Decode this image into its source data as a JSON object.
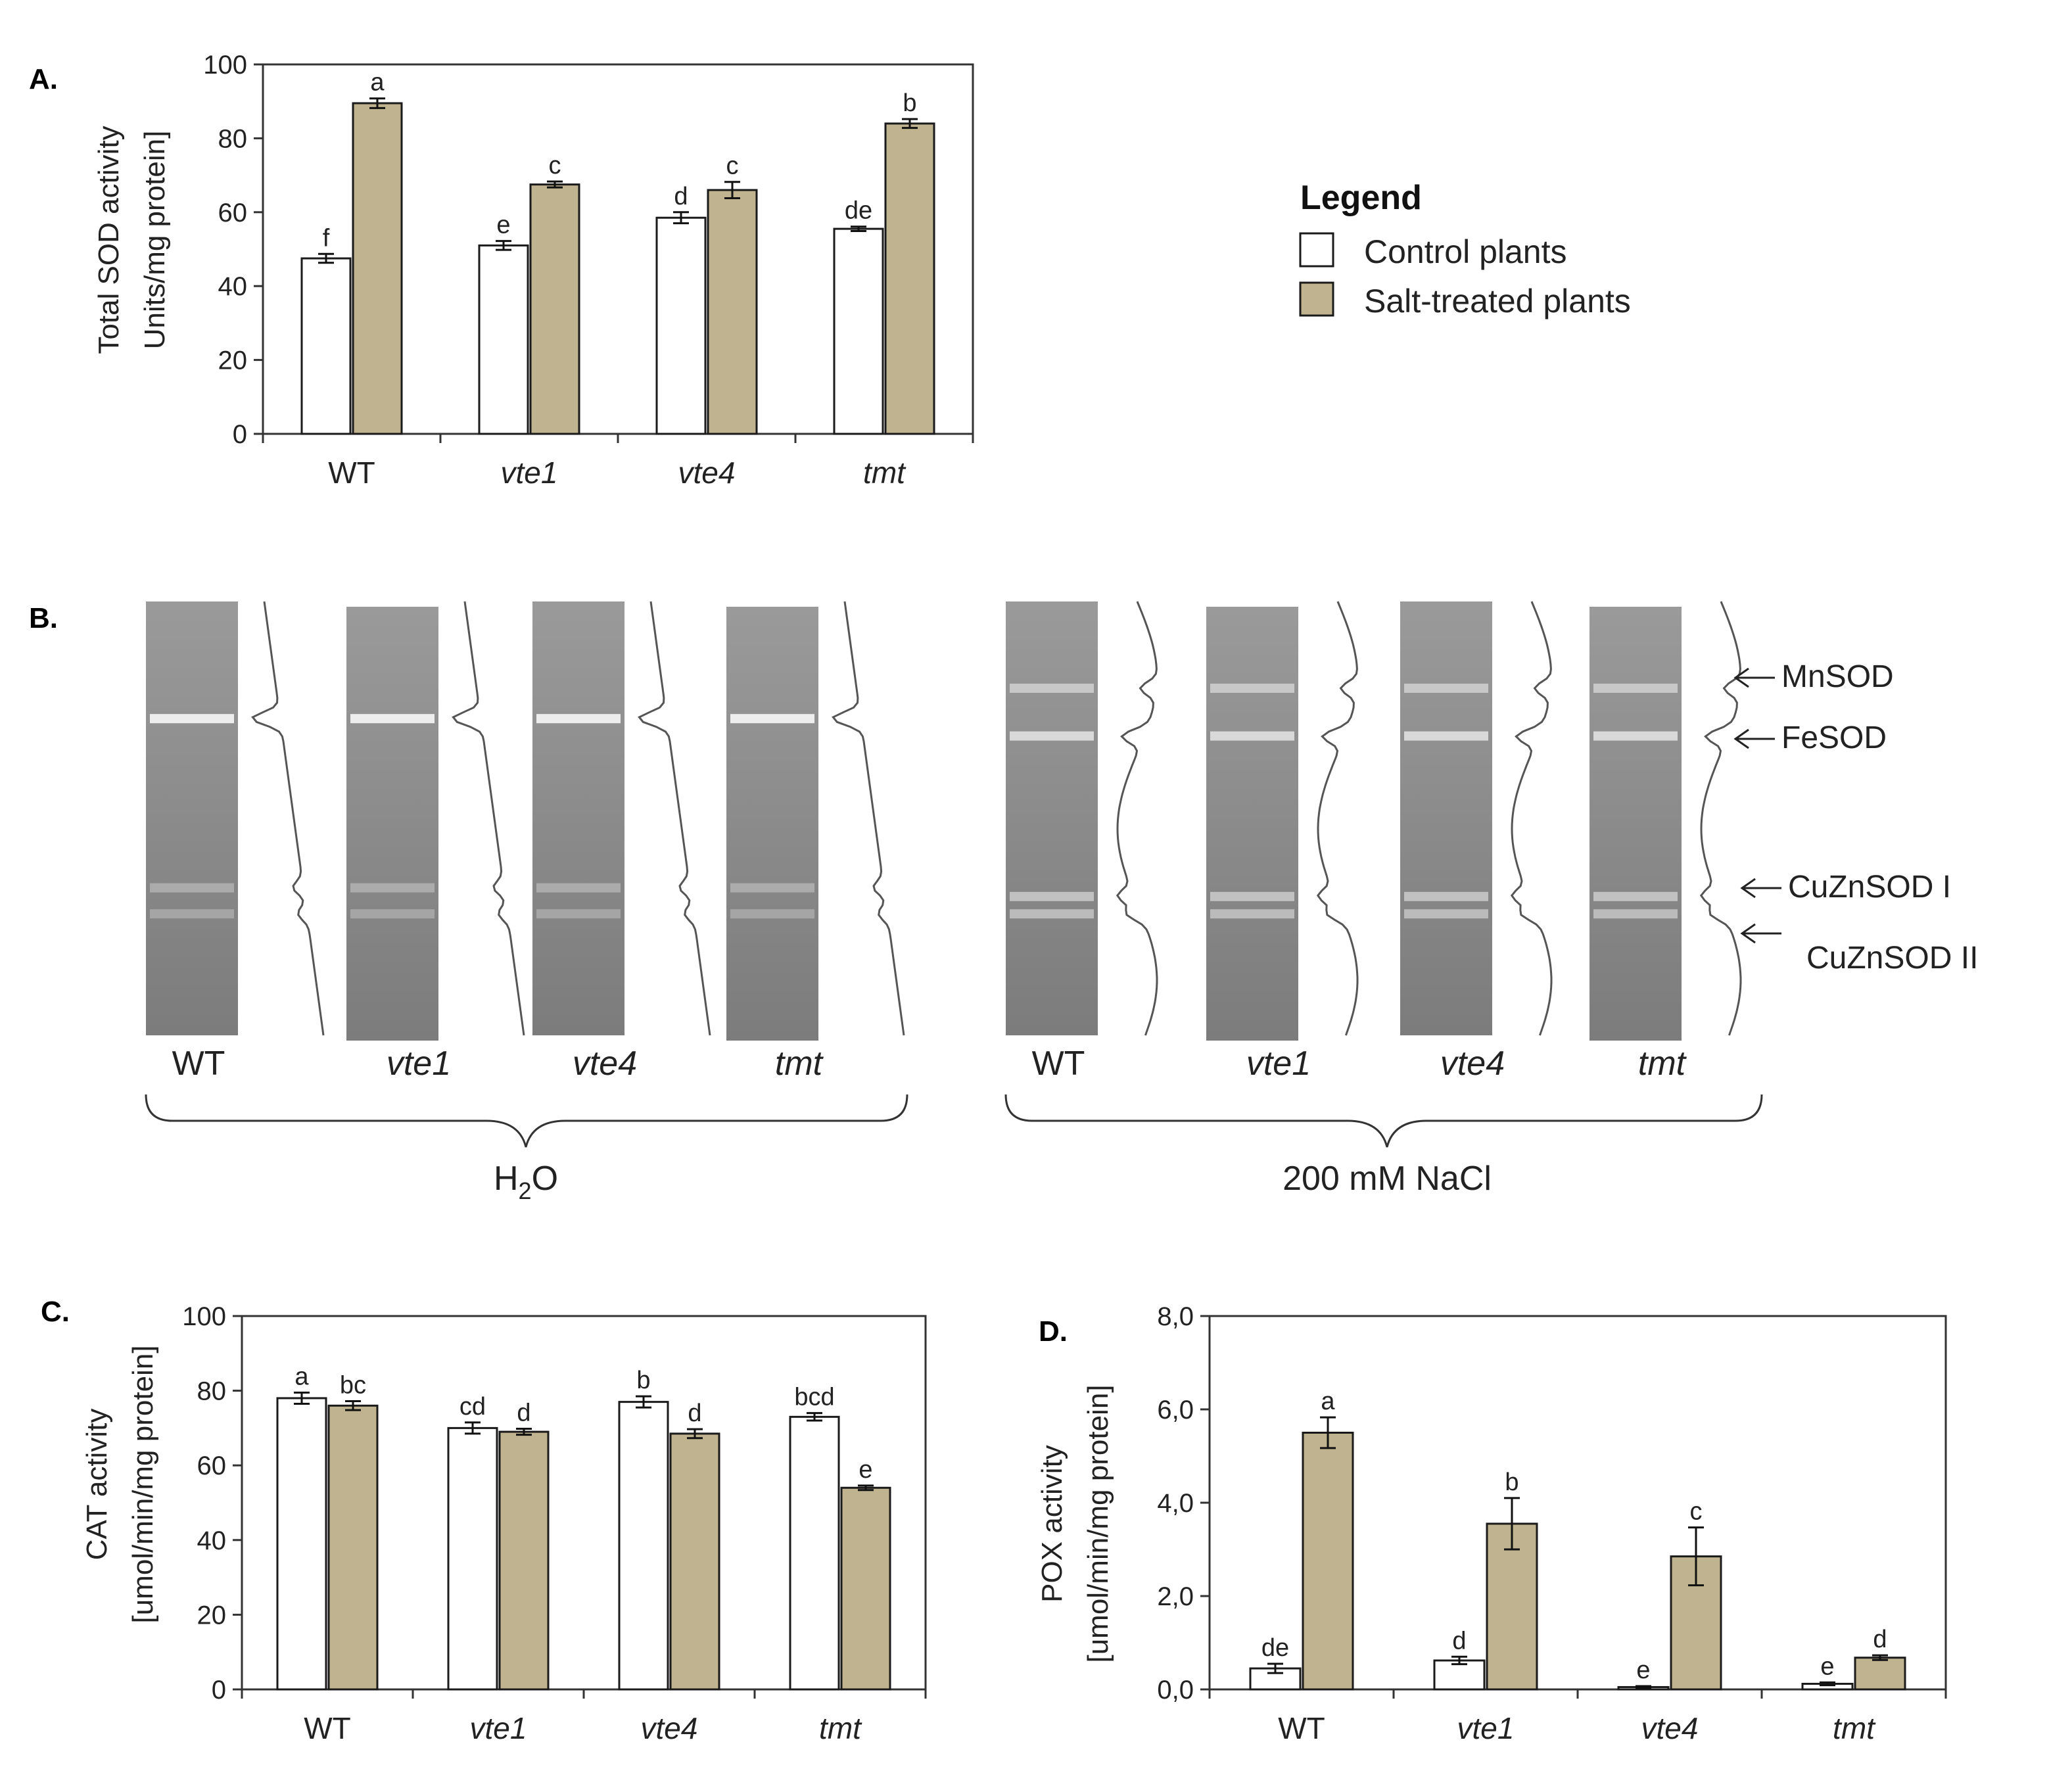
{
  "colors": {
    "control": "#ffffff",
    "salt": "#bfb48f",
    "stroke": "#1a1a1a",
    "gel": "#8a8a8a"
  },
  "chart_data": [
    {
      "id": "A",
      "panel_label": "A.",
      "type": "bar",
      "ylabel": [
        "Total SOD activity",
        "Units/mg protein]"
      ],
      "ylim": [
        0,
        100
      ],
      "yticks": [
        "0",
        "20",
        "40",
        "60",
        "80",
        "100"
      ],
      "ytick_values": [
        0,
        20,
        40,
        60,
        80,
        100
      ],
      "categories": [
        "WT",
        "vte1",
        "vte4",
        "tmt"
      ],
      "series": [
        {
          "name": "Control plants",
          "values": [
            47.5,
            51,
            58.5,
            55.5
          ],
          "errors": [
            1.2,
            1.2,
            1.5,
            0.6
          ],
          "labels": [
            "f",
            "e",
            "d",
            "de"
          ]
        },
        {
          "name": "Salt-treated plants",
          "values": [
            89.5,
            67.5,
            66,
            84
          ],
          "errors": [
            1.3,
            0.8,
            2.2,
            1.2
          ],
          "labels": [
            "a",
            "c",
            "c",
            "b"
          ]
        }
      ]
    },
    {
      "id": "C",
      "panel_label": "C.",
      "type": "bar",
      "ylabel": [
        "CAT activity",
        "[umol/min/mg protein]"
      ],
      "ylim": [
        0,
        100
      ],
      "yticks": [
        "0",
        "20",
        "40",
        "60",
        "80",
        "100"
      ],
      "ytick_values": [
        0,
        20,
        40,
        60,
        80,
        100
      ],
      "categories": [
        "WT",
        "vte1",
        "vte4",
        "tmt"
      ],
      "series": [
        {
          "name": "Control plants",
          "values": [
            78,
            70,
            77,
            73
          ],
          "errors": [
            1.5,
            1.5,
            1.5,
            1.0
          ],
          "labels": [
            "a",
            "cd",
            "b",
            "bcd"
          ]
        },
        {
          "name": "Salt-treated plants",
          "values": [
            76,
            69,
            68.5,
            54
          ],
          "errors": [
            1.2,
            0.8,
            1.2,
            0.6
          ],
          "labels": [
            "bc",
            "d",
            "d",
            "e"
          ]
        }
      ]
    },
    {
      "id": "D",
      "panel_label": "D.",
      "type": "bar",
      "ylabel": [
        "POX activity",
        "[umol/min/mg protein]"
      ],
      "ylim": [
        0,
        8
      ],
      "yticks": [
        "0,0",
        "2,0",
        "4,0",
        "6,0",
        "8,0"
      ],
      "ytick_values": [
        0,
        2,
        4,
        6,
        8
      ],
      "categories": [
        "WT",
        "vte1",
        "vte4",
        "tmt"
      ],
      "series": [
        {
          "name": "Control plants",
          "values": [
            0.45,
            0.62,
            0.05,
            0.12
          ],
          "errors": [
            0.1,
            0.08,
            0.02,
            0.03
          ],
          "labels": [
            "de",
            "d",
            "e",
            "e"
          ]
        },
        {
          "name": "Salt-treated plants",
          "values": [
            5.5,
            3.55,
            2.85,
            0.68
          ],
          "errors": [
            0.33,
            0.55,
            0.62,
            0.05
          ],
          "labels": [
            "a",
            "b",
            "c",
            "d"
          ]
        }
      ]
    }
  ],
  "legend": {
    "title": "Legend",
    "items": [
      "Control plants",
      "Salt-treated plants"
    ]
  },
  "gel": {
    "panel_label": "B.",
    "lanes_water": [
      "WT",
      "vte1",
      "vte4",
      "tmt"
    ],
    "lanes_salt": [
      "WT",
      "vte1",
      "vte4",
      "tmt"
    ],
    "bands": [
      "MnSOD",
      "FeSOD",
      "CuZnSOD I",
      "CuZnSOD II"
    ],
    "condition_water_main": "H",
    "condition_water_sub": "2",
    "condition_water_tail": "O",
    "condition_salt": "200 mM NaCl"
  }
}
